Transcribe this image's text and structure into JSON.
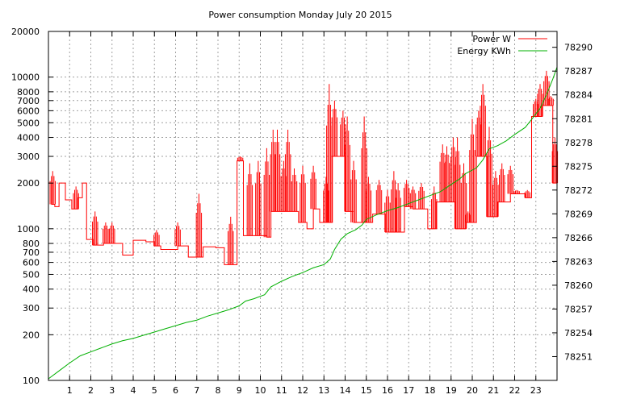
{
  "chart_data": {
    "type": "line",
    "title": "Power consumption Monday July 20 2015",
    "legend_position": "top-right",
    "grid": true,
    "x": {
      "label": "",
      "range": [
        0,
        24
      ],
      "tick_labels": [
        "1",
        "2",
        "3",
        "4",
        "5",
        "6",
        "7",
        "8",
        "9",
        "10",
        "11",
        "12",
        "13",
        "14",
        "15",
        "16",
        "17",
        "18",
        "19",
        "20",
        "21",
        "22",
        "23"
      ]
    },
    "y_left": {
      "label": "",
      "scale": "log",
      "range": [
        100,
        20000
      ],
      "tick_values": [
        100,
        200,
        300,
        400,
        500,
        600,
        700,
        800,
        1000,
        2000,
        3000,
        4000,
        5000,
        6000,
        7000,
        8000,
        10000,
        20000
      ],
      "tick_labels": [
        "100",
        "200",
        "300",
        "400",
        "500",
        "600",
        "700",
        "800",
        "1000",
        "2000",
        "3000",
        "4000",
        "5000",
        "6000",
        "7000",
        "8000",
        "10000",
        "20000"
      ]
    },
    "y_right": {
      "label": "",
      "scale": "linear",
      "range": [
        78248,
        78292
      ],
      "tick_values": [
        78251,
        78254,
        78257,
        78260,
        78263,
        78266,
        78269,
        78272,
        78275,
        78278,
        78281,
        78284,
        78287,
        78290
      ],
      "tick_labels": [
        "78251",
        "78254",
        "78257",
        "78260",
        "78263",
        "78266",
        "78269",
        "78272",
        "78275",
        "78278",
        "78281",
        "78284",
        "78287",
        "78290"
      ]
    },
    "series": [
      {
        "name": "Power W",
        "color": "#ff0000",
        "axis": "left",
        "baseline": [
          [
            0.0,
            2000
          ],
          [
            0.15,
            1450
          ],
          [
            0.3,
            1400
          ],
          [
            0.5,
            2000
          ],
          [
            0.8,
            1550
          ],
          [
            1.1,
            1350
          ],
          [
            1.4,
            1600
          ],
          [
            1.6,
            2000
          ],
          [
            1.8,
            850
          ],
          [
            2.1,
            780
          ],
          [
            2.6,
            800
          ],
          [
            3.3,
            800
          ],
          [
            3.5,
            670
          ],
          [
            3.9,
            670
          ],
          [
            4.0,
            840
          ],
          [
            4.6,
            820
          ],
          [
            5.0,
            770
          ],
          [
            5.3,
            730
          ],
          [
            5.9,
            730
          ],
          [
            6.1,
            770
          ],
          [
            6.5,
            770
          ],
          [
            6.6,
            650
          ],
          [
            7.0,
            650
          ],
          [
            7.3,
            760
          ],
          [
            7.9,
            750
          ],
          [
            8.3,
            580
          ],
          [
            8.8,
            580
          ],
          [
            8.9,
            2800
          ],
          [
            9.2,
            900
          ],
          [
            9.7,
            900
          ],
          [
            10.3,
            880
          ],
          [
            10.5,
            1300
          ],
          [
            11.0,
            1300
          ],
          [
            11.8,
            1100
          ],
          [
            12.2,
            1000
          ],
          [
            12.5,
            1350
          ],
          [
            12.8,
            1100
          ],
          [
            13.2,
            1100
          ],
          [
            13.4,
            3000
          ],
          [
            14.0,
            1300
          ],
          [
            14.4,
            1100
          ],
          [
            15.0,
            1100
          ],
          [
            15.3,
            1250
          ],
          [
            15.9,
            950
          ],
          [
            16.4,
            950
          ],
          [
            16.8,
            1400
          ],
          [
            17.2,
            1350
          ],
          [
            17.9,
            1000
          ],
          [
            18.3,
            1500
          ],
          [
            19.2,
            1000
          ],
          [
            19.7,
            1100
          ],
          [
            20.2,
            3000
          ],
          [
            20.7,
            1200
          ],
          [
            21.2,
            1500
          ],
          [
            21.8,
            1700
          ],
          [
            22.5,
            1600
          ],
          [
            22.8,
            5500
          ],
          [
            23.3,
            6500
          ],
          [
            23.8,
            2000
          ],
          [
            24.0,
            1400
          ]
        ],
        "spikes": [
          [
            0.2,
            2400
          ],
          [
            1.3,
            1900
          ],
          [
            2.2,
            1300
          ],
          [
            2.7,
            1100
          ],
          [
            3.0,
            1100
          ],
          [
            5.1,
            980
          ],
          [
            6.1,
            1100
          ],
          [
            7.1,
            1700
          ],
          [
            8.6,
            1200
          ],
          [
            9.05,
            3000
          ],
          [
            9.5,
            2700
          ],
          [
            9.9,
            2800
          ],
          [
            10.3,
            3400
          ],
          [
            10.6,
            4500
          ],
          [
            10.8,
            4500
          ],
          [
            11.1,
            2800
          ],
          [
            11.3,
            4500
          ],
          [
            11.6,
            2500
          ],
          [
            12.0,
            2600
          ],
          [
            12.5,
            2600
          ],
          [
            13.1,
            2200
          ],
          [
            13.25,
            9000
          ],
          [
            13.5,
            7000
          ],
          [
            13.9,
            6000
          ],
          [
            14.1,
            5500
          ],
          [
            14.4,
            2800
          ],
          [
            14.9,
            5500
          ],
          [
            15.1,
            2200
          ],
          [
            15.6,
            2100
          ],
          [
            16.0,
            1800
          ],
          [
            16.3,
            2400
          ],
          [
            16.5,
            2000
          ],
          [
            16.9,
            2100
          ],
          [
            17.2,
            1900
          ],
          [
            17.6,
            2000
          ],
          [
            18.2,
            1900
          ],
          [
            18.6,
            3600
          ],
          [
            18.8,
            3500
          ],
          [
            19.1,
            4000
          ],
          [
            19.3,
            4000
          ],
          [
            19.6,
            2700
          ],
          [
            19.8,
            1300
          ],
          [
            20.0,
            5300
          ],
          [
            20.3,
            6000
          ],
          [
            20.5,
            9000
          ],
          [
            20.8,
            4700
          ],
          [
            21.1,
            2400
          ],
          [
            21.4,
            2700
          ],
          [
            21.8,
            2600
          ],
          [
            22.1,
            1800
          ],
          [
            22.6,
            1800
          ],
          [
            23.0,
            7200
          ],
          [
            23.2,
            9000
          ],
          [
            23.5,
            11000
          ],
          [
            23.7,
            7500
          ],
          [
            23.9,
            4000
          ]
        ]
      },
      {
        "name": "Energy KWh",
        "color": "#00b000",
        "axis": "right",
        "points": [
          [
            0.0,
            78248.2
          ],
          [
            0.5,
            78249.2
          ],
          [
            1.0,
            78250.2
          ],
          [
            1.5,
            78251.1
          ],
          [
            2.0,
            78251.6
          ],
          [
            2.5,
            78252.1
          ],
          [
            3.0,
            78252.6
          ],
          [
            3.5,
            78253.0
          ],
          [
            4.0,
            78253.3
          ],
          [
            4.5,
            78253.7
          ],
          [
            5.0,
            78254.1
          ],
          [
            5.5,
            78254.5
          ],
          [
            6.0,
            78254.9
          ],
          [
            6.5,
            78255.3
          ],
          [
            7.0,
            78255.6
          ],
          [
            7.5,
            78256.1
          ],
          [
            8.0,
            78256.5
          ],
          [
            8.5,
            78256.9
          ],
          [
            9.0,
            78257.4
          ],
          [
            9.3,
            78258.0
          ],
          [
            9.7,
            78258.3
          ],
          [
            10.2,
            78258.8
          ],
          [
            10.5,
            78259.8
          ],
          [
            11.0,
            78260.5
          ],
          [
            11.5,
            78261.1
          ],
          [
            12.0,
            78261.6
          ],
          [
            12.5,
            78262.2
          ],
          [
            13.0,
            78262.6
          ],
          [
            13.3,
            78263.3
          ],
          [
            13.5,
            78264.5
          ],
          [
            13.8,
            78265.8
          ],
          [
            14.1,
            78266.5
          ],
          [
            14.5,
            78267.0
          ],
          [
            14.8,
            78267.6
          ],
          [
            15.0,
            78268.3
          ],
          [
            15.5,
            78268.9
          ],
          [
            16.0,
            78269.4
          ],
          [
            16.5,
            78269.8
          ],
          [
            17.0,
            78270.3
          ],
          [
            17.5,
            78270.8
          ],
          [
            18.0,
            78271.3
          ],
          [
            18.5,
            78271.8
          ],
          [
            19.0,
            78272.7
          ],
          [
            19.4,
            78273.4
          ],
          [
            19.7,
            78274.1
          ],
          [
            20.2,
            78274.8
          ],
          [
            20.5,
            78275.8
          ],
          [
            20.8,
            78277.2
          ],
          [
            21.2,
            78277.6
          ],
          [
            21.6,
            78278.2
          ],
          [
            22.0,
            78279.0
          ],
          [
            22.5,
            78279.9
          ],
          [
            22.8,
            78280.9
          ],
          [
            23.2,
            78282.3
          ],
          [
            23.5,
            78284.0
          ],
          [
            23.8,
            78286.0
          ],
          [
            24.0,
            78287.5
          ]
        ]
      }
    ]
  }
}
